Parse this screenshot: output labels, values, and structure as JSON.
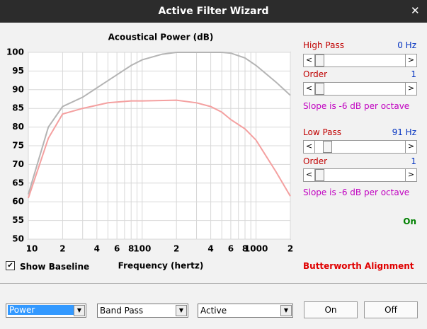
{
  "window": {
    "title": "Active Filter Wizard"
  },
  "chart_data": {
    "type": "line",
    "title": "Acoustical Power (dB)",
    "x_label": "Frequency (hertz)",
    "xscale": "log",
    "grid": true,
    "xlim": [
      10,
      2000
    ],
    "ylim": [
      50,
      100
    ],
    "yticks": [
      50,
      55,
      60,
      65,
      70,
      75,
      80,
      85,
      90,
      95,
      100
    ],
    "xticks": [
      10,
      {
        "value": 20,
        "label": "2"
      },
      {
        "value": 40,
        "label": "4"
      },
      {
        "value": 60,
        "label": "6"
      },
      {
        "value": 80,
        "label": "8"
      },
      100,
      {
        "value": 200,
        "label": "2"
      },
      {
        "value": 400,
        "label": "4"
      },
      {
        "value": 600,
        "label": "6"
      },
      {
        "value": 800,
        "label": "8"
      },
      1000,
      {
        "value": 2000,
        "label": "2"
      }
    ],
    "minor_xticks": [
      30,
      50,
      70,
      90,
      300,
      500,
      700,
      900
    ],
    "series": [
      {
        "name": "Baseline",
        "color": "#b4b4b4",
        "x": [
          10,
          15,
          20,
          30,
          40,
          60,
          80,
          100,
          150,
          200,
          500,
          600,
          800,
          1000,
          1500,
          2000
        ],
        "values": [
          62,
          80,
          85.5,
          88,
          90.5,
          94,
          96.5,
          98,
          99.5,
          100,
          100,
          99.8,
          98.5,
          96.5,
          92,
          88.5
        ]
      },
      {
        "name": "Power",
        "color": "#f4a0a0",
        "x": [
          10,
          15,
          20,
          30,
          50,
          80,
          100,
          200,
          300,
          400,
          500,
          600,
          800,
          1000,
          1500,
          2000
        ],
        "values": [
          61,
          77,
          83.5,
          85,
          86.5,
          87,
          87,
          87.2,
          86.5,
          85.5,
          84,
          82,
          79.5,
          76.5,
          68,
          61.5
        ]
      }
    ]
  },
  "high_pass": {
    "label": "High Pass",
    "value": "0 Hz",
    "order_label": "Order",
    "order": "1",
    "slope": "Slope is -6 dB per octave"
  },
  "low_pass": {
    "label": "Low Pass",
    "value": "91 Hz",
    "order_label": "Order",
    "order": "1",
    "slope": "Slope is -6 dB per octave"
  },
  "status": "On",
  "alignment": "Butterworth Alignment",
  "show_baseline": {
    "label": "Show Baseline",
    "checked": true
  },
  "dropdowns": [
    "Power",
    "Band Pass",
    "Active"
  ],
  "buttons": [
    "On",
    "Off"
  ]
}
